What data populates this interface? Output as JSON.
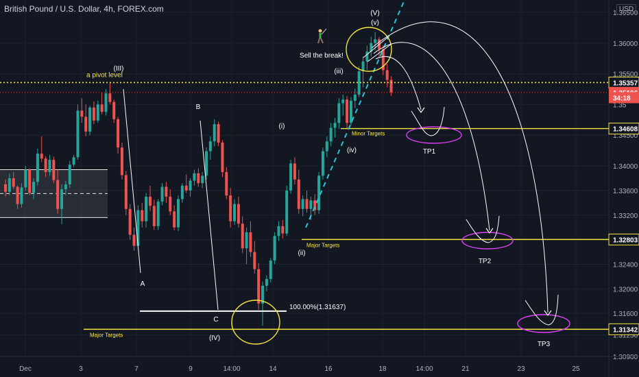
{
  "header": {
    "title": "British Pound / U.S. Dollar, 4h, FOREX.com",
    "currency": "USD"
  },
  "chart_data": {
    "type": "candlestick",
    "symbol": "GBPUSD",
    "ylim": [
      1.309,
      1.367
    ],
    "y_ticks": [
      1.365,
      1.36,
      1.355,
      1.35,
      1.345,
      1.34,
      1.336,
      1.332,
      1.328,
      1.324,
      1.32,
      1.316,
      1.3125,
      1.309
    ],
    "y_tick_labels": [
      "1.36500",
      "1.36000",
      "1.35500",
      "1.35",
      "1.34500",
      "1.34000",
      "1.33600",
      "1.33200",
      "1.32800",
      "1.32400",
      "1.32000",
      "1.31600",
      "1.31250",
      "1.30900"
    ],
    "x_ticks": [
      "Dec",
      "3",
      "7",
      "9",
      "14:00",
      "14",
      "16",
      "18",
      "14:00",
      "21",
      "23",
      "25"
    ],
    "price_tags": [
      {
        "value": 1.35357,
        "label": "1.35357",
        "style": "yellow-outline"
      },
      {
        "value": 1.35196,
        "label": "1.35196",
        "style": "red"
      },
      {
        "value": 1.3511,
        "label": "34:18",
        "style": "red"
      },
      {
        "value": 1.34608,
        "label": "1.34608",
        "style": "yellow-outline"
      },
      {
        "value": 1.32803,
        "label": "1.32803",
        "style": "yellow-outline"
      },
      {
        "value": 1.31342,
        "label": "1.31342",
        "style": "yellow-outline"
      }
    ],
    "levels": [
      {
        "name": "pivot",
        "value": 1.35357,
        "label": "a pivot level",
        "style": "dotted"
      },
      {
        "name": "current",
        "value": 1.35196,
        "style": "dotted-red"
      },
      {
        "name": "minor",
        "value": 1.34608,
        "label": "Minor Targets"
      },
      {
        "name": "major1",
        "value": 1.32803,
        "label": "Major Targets"
      },
      {
        "name": "major2",
        "value": 1.31342,
        "label": "Major Targets"
      },
      {
        "name": "fib",
        "value": 1.31637,
        "label": "100.00%(1.31637)"
      }
    ],
    "wave_labels": [
      "(III)",
      "A",
      "B",
      "C",
      "(IV)",
      "(i)",
      "(ii)",
      "(iii)",
      "(iv)",
      "(V)",
      "(v)"
    ],
    "targets": [
      "TP1",
      "TP2",
      "TP3"
    ],
    "annotation": "Sell the break!",
    "candles": [
      [
        1.337,
        1.3378,
        1.335,
        1.3358
      ],
      [
        1.3358,
        1.3388,
        1.3352,
        1.338
      ],
      [
        1.338,
        1.339,
        1.3362,
        1.3366
      ],
      [
        1.3366,
        1.3368,
        1.333,
        1.3338
      ],
      [
        1.3338,
        1.3372,
        1.3332,
        1.3365
      ],
      [
        1.3365,
        1.34,
        1.336,
        1.3394
      ],
      [
        1.3394,
        1.3396,
        1.3352,
        1.3356
      ],
      [
        1.3356,
        1.338,
        1.3346,
        1.3374
      ],
      [
        1.3374,
        1.3428,
        1.3368,
        1.342
      ],
      [
        1.342,
        1.3448,
        1.3406,
        1.3412
      ],
      [
        1.3412,
        1.3416,
        1.3382,
        1.339
      ],
      [
        1.339,
        1.3418,
        1.3384,
        1.341
      ],
      [
        1.341,
        1.3415,
        1.3372,
        1.3377
      ],
      [
        1.3377,
        1.3394,
        1.3322,
        1.333
      ],
      [
        1.333,
        1.337,
        1.3305,
        1.3362
      ],
      [
        1.3362,
        1.3376,
        1.3352,
        1.337
      ],
      [
        1.337,
        1.3408,
        1.3364,
        1.3402
      ],
      [
        1.3402,
        1.3418,
        1.3398,
        1.3414
      ],
      [
        1.3414,
        1.35,
        1.341,
        1.349
      ],
      [
        1.349,
        1.351,
        1.347,
        1.348
      ],
      [
        1.348,
        1.35,
        1.3448,
        1.3456
      ],
      [
        1.3456,
        1.3498,
        1.345,
        1.3495
      ],
      [
        1.3495,
        1.3505,
        1.3468,
        1.3474
      ],
      [
        1.3474,
        1.3506,
        1.347,
        1.35
      ],
      [
        1.35,
        1.352,
        1.3484,
        1.3488
      ],
      [
        1.3488,
        1.3525,
        1.3482,
        1.3518
      ],
      [
        1.3518,
        1.3535,
        1.35,
        1.3504
      ],
      [
        1.3504,
        1.3508,
        1.347,
        1.3476
      ],
      [
        1.3476,
        1.348,
        1.342,
        1.343
      ],
      [
        1.343,
        1.3438,
        1.3378,
        1.3385
      ],
      [
        1.3385,
        1.3392,
        1.332,
        1.333
      ],
      [
        1.333,
        1.3338,
        1.328,
        1.3288
      ],
      [
        1.3288,
        1.33,
        1.3262,
        1.327
      ],
      [
        1.327,
        1.3336,
        1.3266,
        1.3328
      ],
      [
        1.3328,
        1.334,
        1.33,
        1.331
      ],
      [
        1.331,
        1.3356,
        1.33,
        1.335
      ],
      [
        1.335,
        1.3368,
        1.3326,
        1.3335
      ],
      [
        1.3335,
        1.3345,
        1.3296,
        1.3302
      ],
      [
        1.3302,
        1.3346,
        1.3296,
        1.3342
      ],
      [
        1.3342,
        1.3372,
        1.3336,
        1.3366
      ],
      [
        1.3366,
        1.3374,
        1.334,
        1.335
      ],
      [
        1.335,
        1.3362,
        1.332,
        1.3326
      ],
      [
        1.3326,
        1.3336,
        1.3295,
        1.33
      ],
      [
        1.33,
        1.3352,
        1.3294,
        1.3346
      ],
      [
        1.3346,
        1.3372,
        1.334,
        1.3368
      ],
      [
        1.3368,
        1.3386,
        1.3356,
        1.336
      ],
      [
        1.336,
        1.338,
        1.335,
        1.3376
      ],
      [
        1.3376,
        1.3394,
        1.3368,
        1.3388
      ],
      [
        1.3388,
        1.3396,
        1.3366,
        1.3372
      ],
      [
        1.3372,
        1.339,
        1.3364,
        1.3384
      ],
      [
        1.3384,
        1.343,
        1.3378,
        1.3424
      ],
      [
        1.3424,
        1.3448,
        1.341,
        1.344
      ],
      [
        1.344,
        1.3476,
        1.3432,
        1.3468
      ],
      [
        1.3468,
        1.3472,
        1.3432,
        1.3438
      ],
      [
        1.3438,
        1.3442,
        1.3382,
        1.339
      ],
      [
        1.339,
        1.3398,
        1.3346,
        1.3352
      ],
      [
        1.3352,
        1.3364,
        1.33,
        1.331
      ],
      [
        1.331,
        1.3346,
        1.3304,
        1.3338
      ],
      [
        1.3338,
        1.335,
        1.33,
        1.3306
      ],
      [
        1.3306,
        1.3318,
        1.3258,
        1.3266
      ],
      [
        1.3266,
        1.33,
        1.324,
        1.3292
      ],
      [
        1.3292,
        1.331,
        1.3252,
        1.326
      ],
      [
        1.326,
        1.3278,
        1.3225,
        1.3232
      ],
      [
        1.3232,
        1.3242,
        1.3166,
        1.3176
      ],
      [
        1.3176,
        1.3212,
        1.314,
        1.3205
      ],
      [
        1.3205,
        1.3222,
        1.3196,
        1.3216
      ],
      [
        1.3216,
        1.325,
        1.321,
        1.3246
      ],
      [
        1.3246,
        1.3292,
        1.324,
        1.3286
      ],
      [
        1.3286,
        1.331,
        1.3278,
        1.3302
      ],
      [
        1.3302,
        1.3312,
        1.3282,
        1.329
      ],
      [
        1.329,
        1.3368,
        1.3286,
        1.336
      ],
      [
        1.336,
        1.341,
        1.3355,
        1.3404
      ],
      [
        1.3404,
        1.3414,
        1.337,
        1.3378
      ],
      [
        1.3378,
        1.3394,
        1.3322,
        1.333
      ],
      [
        1.333,
        1.3352,
        1.3318,
        1.3346
      ],
      [
        1.3346,
        1.336,
        1.3324,
        1.333
      ],
      [
        1.333,
        1.335,
        1.3312,
        1.3344
      ],
      [
        1.3344,
        1.3354,
        1.332,
        1.3328
      ],
      [
        1.3328,
        1.339,
        1.3322,
        1.3384
      ],
      [
        1.3384,
        1.343,
        1.3378,
        1.3424
      ],
      [
        1.3424,
        1.3448,
        1.3414,
        1.344
      ],
      [
        1.344,
        1.347,
        1.3432,
        1.3462
      ],
      [
        1.3462,
        1.3478,
        1.3446,
        1.347
      ],
      [
        1.347,
        1.351,
        1.346,
        1.3502
      ],
      [
        1.3502,
        1.3516,
        1.3482,
        1.3508
      ],
      [
        1.3508,
        1.3514,
        1.346,
        1.347
      ],
      [
        1.347,
        1.3512,
        1.3466,
        1.3506
      ],
      [
        1.3506,
        1.3526,
        1.3494,
        1.3516
      ],
      [
        1.3516,
        1.3562,
        1.3512,
        1.3554
      ],
      [
        1.3554,
        1.3578,
        1.3528,
        1.357
      ],
      [
        1.357,
        1.3596,
        1.3556,
        1.3586
      ],
      [
        1.3586,
        1.361,
        1.3578,
        1.36
      ],
      [
        1.36,
        1.3618,
        1.3588,
        1.3606
      ],
      [
        1.3606,
        1.361,
        1.3576,
        1.359
      ],
      [
        1.359,
        1.3596,
        1.3548,
        1.3556
      ],
      [
        1.3556,
        1.3566,
        1.3528,
        1.354
      ],
      [
        1.354,
        1.3546,
        1.3514,
        1.352
      ]
    ]
  }
}
